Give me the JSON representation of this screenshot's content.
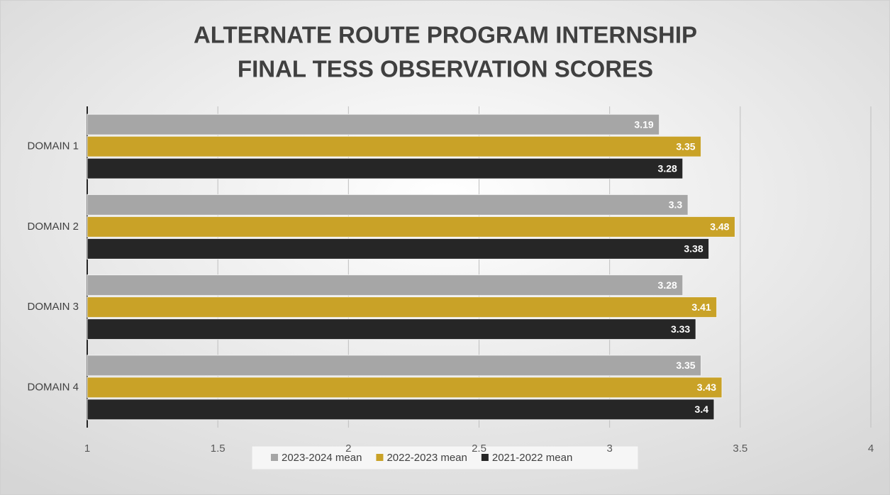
{
  "chart_data": {
    "type": "hbar",
    "title": [
      "ALTERNATE ROUTE PROGRAM INTERNSHIP",
      "FINAL TESS OBSERVATION SCORES"
    ],
    "categories": [
      "DOMAIN 1",
      "DOMAIN 2",
      "DOMAIN 3",
      "DOMAIN 4"
    ],
    "series": [
      {
        "name": "2023-2024 mean",
        "color": "#a6a6a6",
        "values": [
          3.19,
          3.3,
          3.28,
          3.35
        ]
      },
      {
        "name": "2022-2023 mean",
        "color": "#c9a227",
        "values": [
          3.35,
          3.48,
          3.41,
          3.43
        ]
      },
      {
        "name": "2021-2022 mean",
        "color": "#262626",
        "values": [
          3.28,
          3.38,
          3.33,
          3.4
        ]
      }
    ],
    "xlim": [
      1,
      4
    ],
    "xticks": [
      1,
      1.5,
      2,
      2.5,
      3,
      3.5,
      4
    ],
    "grid": true,
    "legend": "bottom"
  }
}
